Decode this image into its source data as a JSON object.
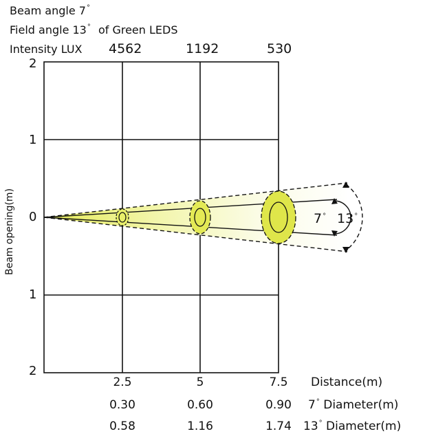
{
  "header": {
    "beam_label": "Beam angle 7",
    "field_label_a": "Field angle 13",
    "field_label_b": "of Green LEDS",
    "intensity_label": "Intensity LUX"
  },
  "lux_values": [
    "4562",
    "1192",
    "530"
  ],
  "y_axis": {
    "label": "Beam opening(m)",
    "ticks": [
      "2",
      "1",
      "0",
      "1",
      "2"
    ]
  },
  "x_axis": {
    "ticks": [
      "2.5",
      "5",
      "7.5"
    ],
    "label": "Distance(m)"
  },
  "diameter_7": {
    "values": [
      "0.30",
      "0.60",
      "0.90"
    ],
    "label_a": "7",
    "label_b": "Diameter(m)"
  },
  "diameter_13": {
    "values": [
      "0.58",
      "1.16",
      "1.74"
    ],
    "label_a": "13",
    "label_b": "Diameter(m)"
  },
  "angles": {
    "inner": "7",
    "outer": "13"
  },
  "colors": {
    "beam_fill": "#e9ef6a",
    "beam_fade": "#fafcd8",
    "lines": "#111111"
  }
}
